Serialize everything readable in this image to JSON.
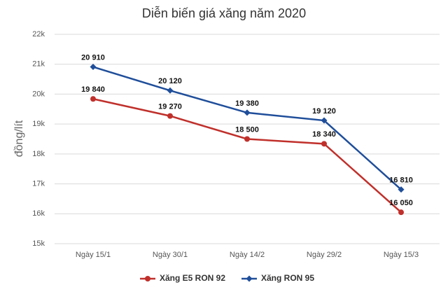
{
  "chart_data": {
    "type": "line",
    "title": "Diễn biến giá xăng năm 2020",
    "ylabel": "đồng/lít",
    "categories": [
      "Ngày 15/1",
      "Ngày 30/1",
      "Ngày 14/2",
      "Ngày 29/2",
      "Ngày 15/3"
    ],
    "series": [
      {
        "name": "Xăng E5 RON 92",
        "color": "#c0302b",
        "marker": "circle",
        "values": [
          19840,
          19270,
          18500,
          18340,
          16050
        ],
        "value_labels": [
          "19 840",
          "19 270",
          "18 500",
          "18 340",
          "16 050"
        ]
      },
      {
        "name": "Xăng RON 95",
        "color": "#1f4e9a",
        "marker": "diamond",
        "values": [
          20910,
          20120,
          19380,
          19120,
          16810
        ],
        "value_labels": [
          "20 910",
          "20 120",
          "19 380",
          "19 120",
          "16 810"
        ]
      }
    ],
    "ylim": [
      15000,
      22000
    ],
    "yticks": [
      {
        "value": 15000,
        "label": "15k"
      },
      {
        "value": 16000,
        "label": "16k"
      },
      {
        "value": 17000,
        "label": "17k"
      },
      {
        "value": 18000,
        "label": "18k"
      },
      {
        "value": 19000,
        "label": "19k"
      },
      {
        "value": 20000,
        "label": "20k"
      },
      {
        "value": 21000,
        "label": "21k"
      },
      {
        "value": 22000,
        "label": "22k"
      }
    ],
    "grid": true,
    "legend": "bottom"
  }
}
